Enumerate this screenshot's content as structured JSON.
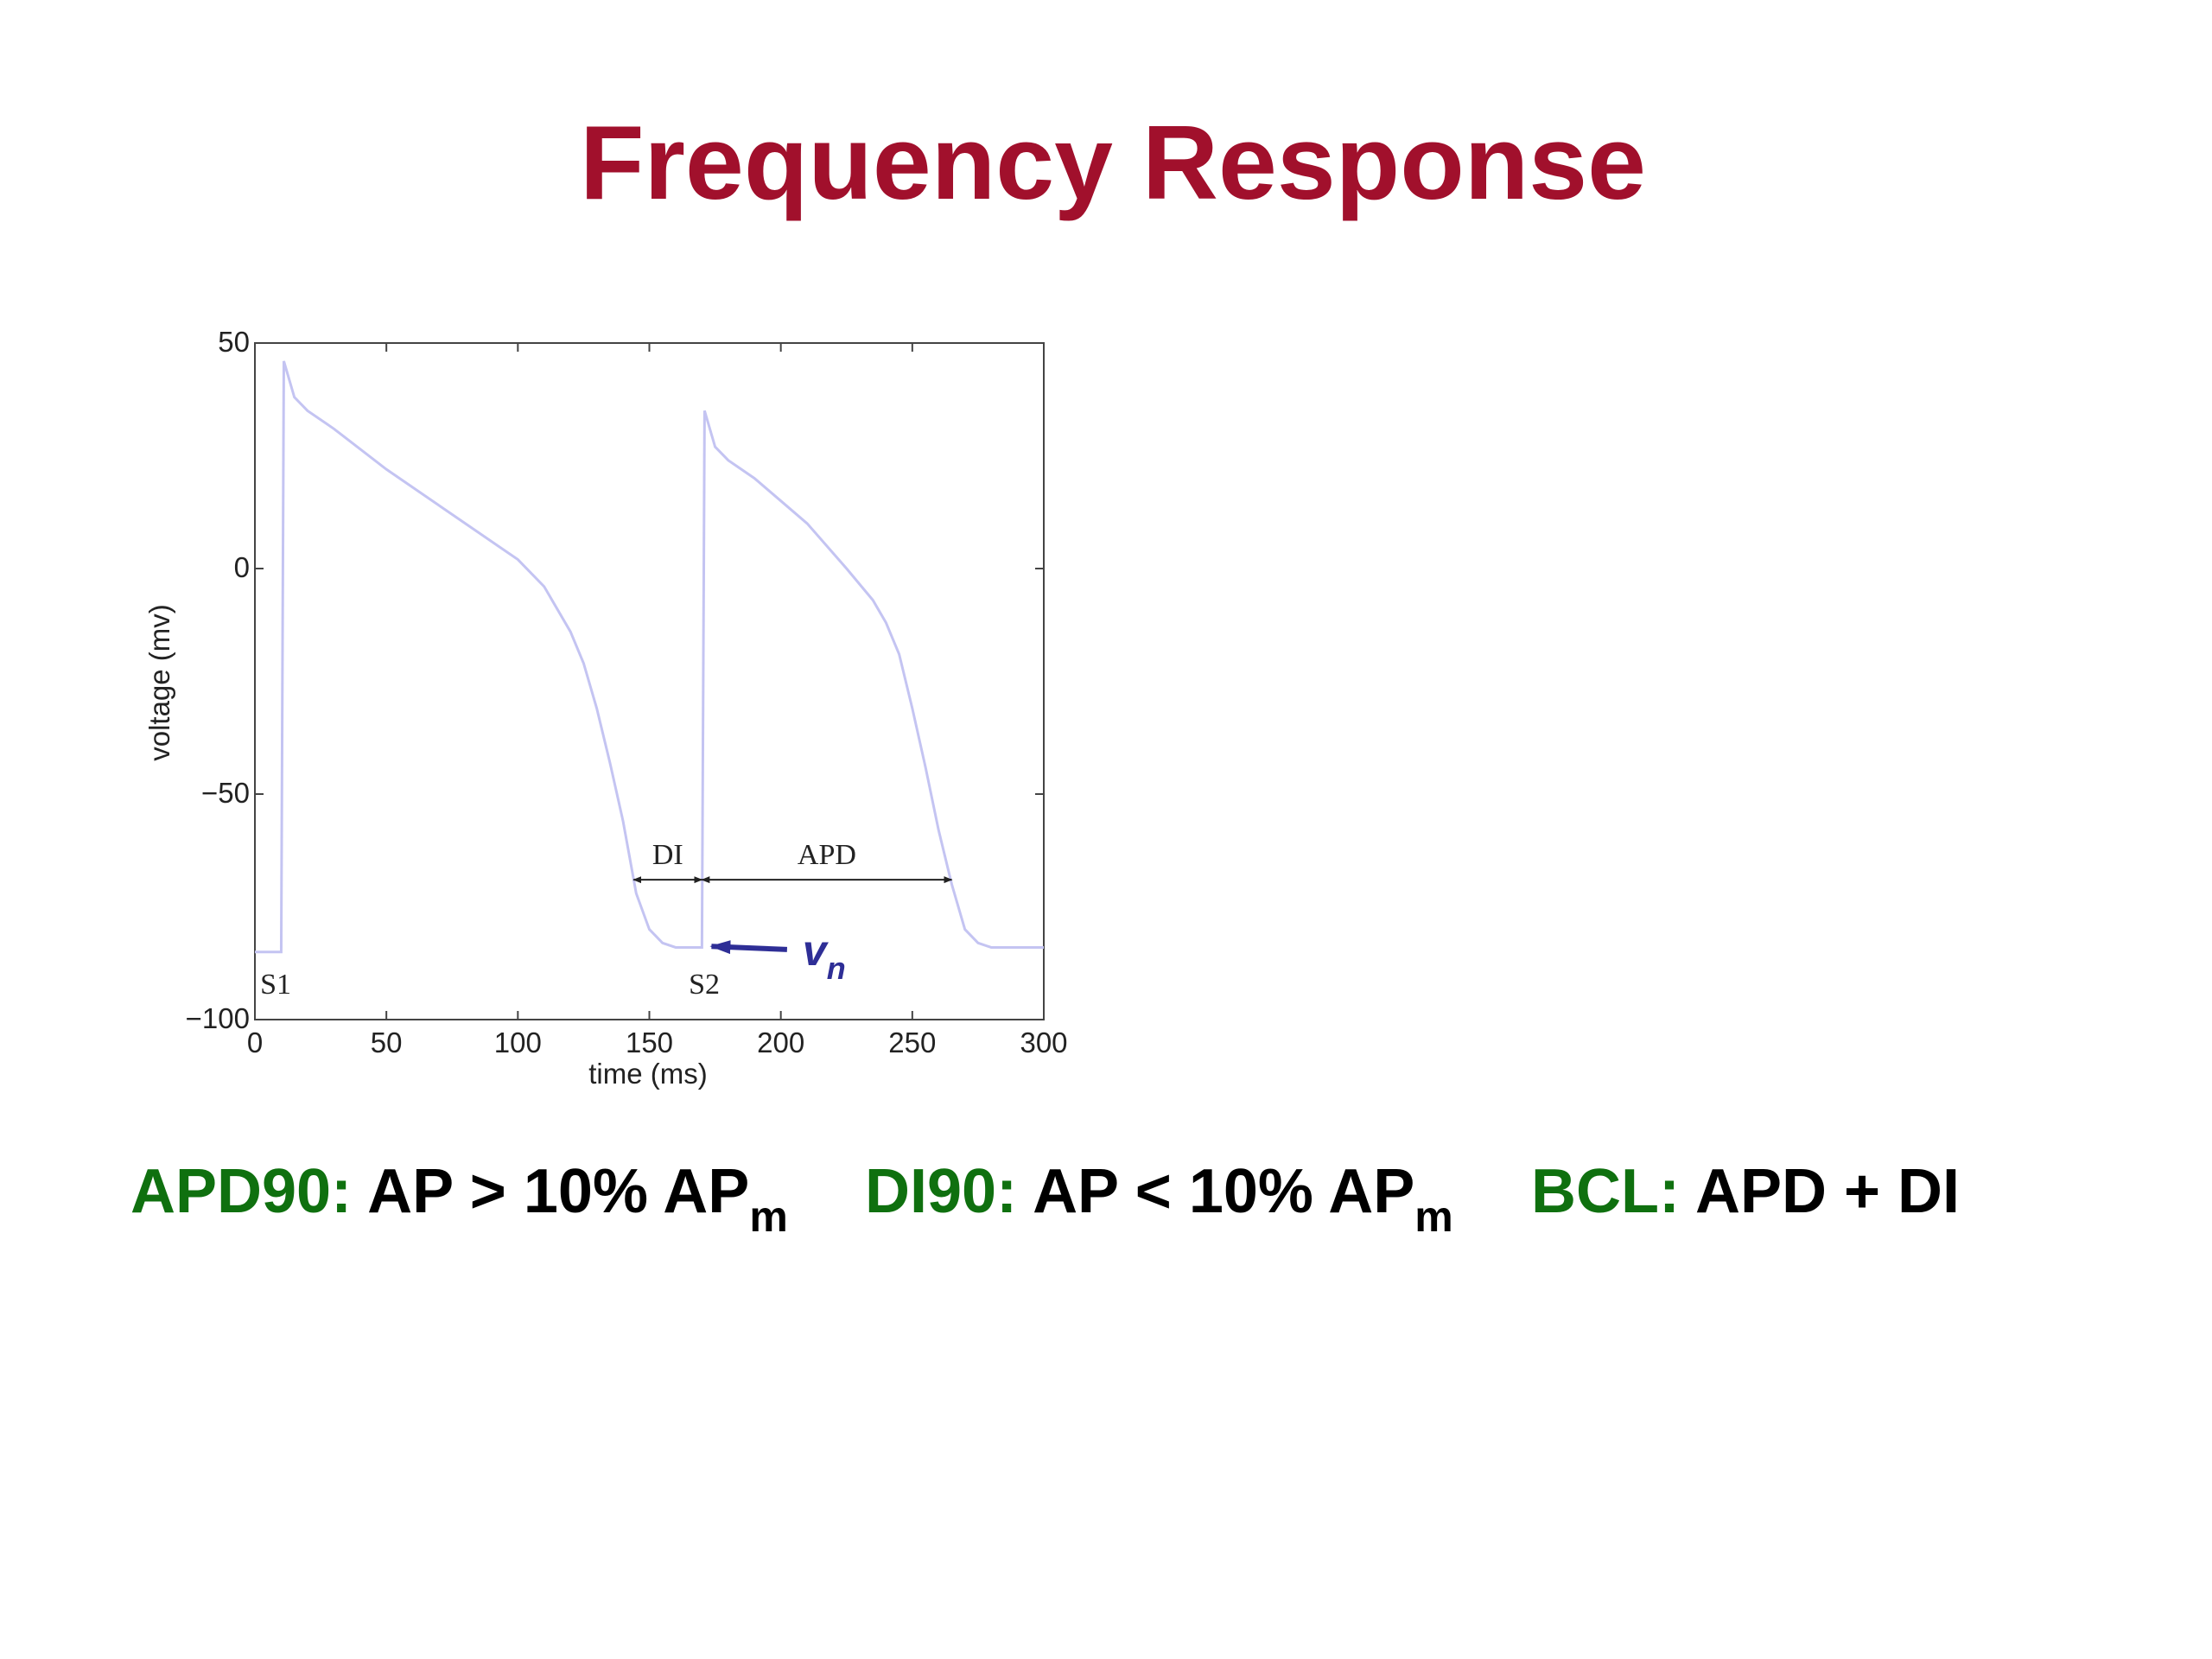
{
  "chart_data": {
    "type": "line",
    "title": "Frequency Response",
    "x_label": "time (ms)",
    "y_label": "voltage (mv)",
    "x": [
      0,
      10,
      11,
      12,
      15,
      20,
      30,
      50,
      75,
      100,
      110,
      120,
      125,
      130,
      135,
      140,
      145,
      150,
      155,
      160,
      170,
      171,
      172,
      175,
      180,
      190,
      200,
      210,
      225,
      235,
      240,
      245,
      250,
      255,
      260,
      265,
      270,
      275,
      280,
      300
    ],
    "series": [
      {
        "color": "#c4c4f2",
        "values": [
          -85,
          -85,
          46,
          44,
          38,
          35,
          31,
          22,
          12,
          2,
          -4,
          -14,
          -21,
          -31,
          -43,
          -56,
          -72,
          -80,
          -83,
          -84,
          -84,
          35,
          33,
          27,
          24,
          20,
          15,
          10,
          0,
          -7,
          -12,
          -19,
          -31,
          -44,
          -58,
          -70,
          -80,
          -83,
          -84,
          -84
        ]
      }
    ],
    "xlim": [
      0,
      300
    ],
    "ylim": [
      -100,
      50
    ],
    "xticks": [
      0,
      50,
      100,
      150,
      200,
      250,
      300
    ],
    "yticks": [
      {
        "value": -100,
        "label": "−100"
      },
      {
        "value": -50,
        "label": "−50"
      },
      0,
      50
    ],
    "spans": [
      {
        "label": "DI",
        "x": [
          144,
          170
        ],
        "y": -69
      },
      {
        "label": "APD",
        "x": [
          170,
          265
        ],
        "y": -69
      }
    ],
    "annotations": [
      {
        "text": "S1",
        "x": 2,
        "y": -92
      },
      {
        "text": "S2",
        "x": 165,
        "y": -92
      }
    ],
    "marker": {
      "text": "v",
      "sub": "n",
      "x": 205,
      "y": -86,
      "color": "#2e2e96"
    }
  },
  "formulas": [
    {
      "label": "APD90:",
      "text": "AP > 10% AP",
      "sub": "m"
    },
    {
      "label": "DI90:",
      "text": "AP < 10% AP",
      "sub": "m"
    },
    {
      "label": "BCL:",
      "text": "APD + DI"
    }
  ]
}
